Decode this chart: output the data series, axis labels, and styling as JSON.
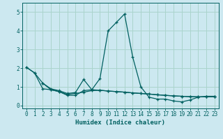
{
  "xlabel": "Humidex (Indice chaleur)",
  "ylabel": "",
  "xlim": [
    -0.5,
    23.5
  ],
  "ylim": [
    -0.15,
    5.5
  ],
  "bg_color": "#cce8f0",
  "grid_color": "#aad4cc",
  "line_color": "#006060",
  "xticks": [
    0,
    1,
    2,
    3,
    4,
    5,
    6,
    7,
    8,
    9,
    10,
    11,
    12,
    13,
    14,
    15,
    16,
    17,
    18,
    19,
    20,
    21,
    22,
    23
  ],
  "yticks": [
    0,
    1,
    2,
    3,
    4,
    5
  ],
  "line1_x": [
    0,
    1,
    2,
    3,
    4,
    5,
    6,
    7,
    8,
    9,
    10,
    11,
    12,
    13,
    14,
    15,
    16,
    17,
    18,
    19,
    20,
    21,
    22,
    23
  ],
  "line1_y": [
    2.05,
    1.75,
    1.2,
    0.85,
    0.75,
    0.55,
    0.55,
    0.8,
    0.85,
    1.45,
    4.0,
    4.45,
    4.9,
    2.6,
    1.0,
    0.45,
    0.35,
    0.35,
    0.25,
    0.2,
    0.3,
    0.45,
    0.5,
    0.5
  ],
  "line2_x": [
    0,
    1,
    2,
    3,
    4,
    5,
    6,
    7,
    8,
    9,
    10,
    11,
    12,
    13,
    14,
    15,
    16,
    17,
    18,
    19,
    20,
    21,
    22,
    23
  ],
  "line2_y": [
    2.05,
    1.75,
    0.9,
    0.85,
    0.75,
    0.6,
    0.65,
    0.72,
    0.8,
    0.82,
    0.78,
    0.75,
    0.72,
    0.68,
    0.65,
    0.62,
    0.58,
    0.55,
    0.52,
    0.5,
    0.48,
    0.47,
    0.47,
    0.47
  ],
  "line3_x": [
    2,
    3,
    4,
    5,
    6,
    7,
    8,
    9,
    10,
    11,
    12,
    13,
    14,
    15,
    16,
    17,
    18,
    19,
    20,
    21,
    22,
    23
  ],
  "line3_y": [
    1.2,
    0.9,
    0.8,
    0.65,
    0.7,
    1.4,
    0.85,
    0.82,
    0.78,
    0.75,
    0.72,
    0.68,
    0.65,
    0.62,
    0.58,
    0.55,
    0.52,
    0.5,
    0.48,
    0.47,
    0.47,
    0.47
  ]
}
